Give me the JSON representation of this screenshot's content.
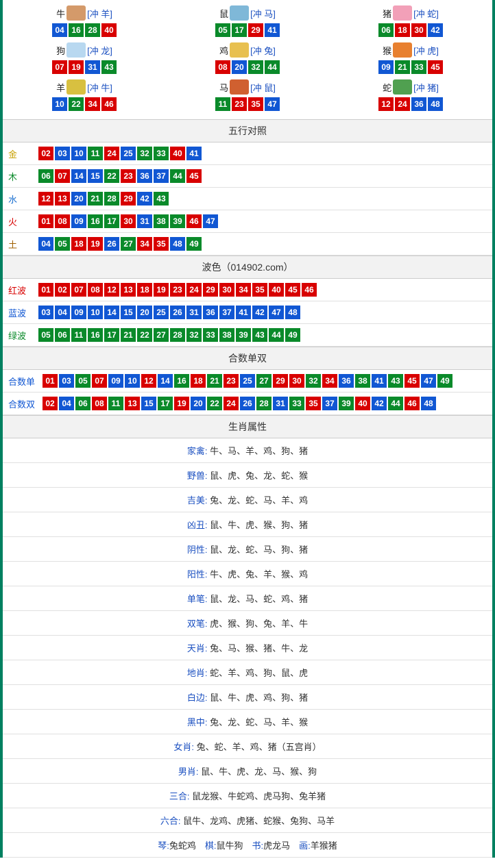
{
  "colors": {
    "red": "#d80000",
    "blue": "#1157d3",
    "green": "#0a8a2a"
  },
  "zodiac_icons": {
    "牛": "#d49a6a",
    "鼠": "#7fb8d8",
    "猪": "#f2a0b8",
    "狗": "#b8d8f0",
    "鸡": "#e8c050",
    "猴": "#e88030",
    "羊": "#d8c040",
    "马": "#d06030",
    "蛇": "#50a050"
  },
  "zodiac": [
    {
      "name": "牛",
      "chong": "[冲 羊]",
      "nums": [
        {
          "n": "04",
          "c": "blue"
        },
        {
          "n": "16",
          "c": "green"
        },
        {
          "n": "28",
          "c": "green"
        },
        {
          "n": "40",
          "c": "red"
        }
      ]
    },
    {
      "name": "鼠",
      "chong": "[冲 马]",
      "nums": [
        {
          "n": "05",
          "c": "green"
        },
        {
          "n": "17",
          "c": "green"
        },
        {
          "n": "29",
          "c": "red"
        },
        {
          "n": "41",
          "c": "blue"
        }
      ]
    },
    {
      "name": "猪",
      "chong": "[冲 蛇]",
      "nums": [
        {
          "n": "06",
          "c": "green"
        },
        {
          "n": "18",
          "c": "red"
        },
        {
          "n": "30",
          "c": "red"
        },
        {
          "n": "42",
          "c": "blue"
        }
      ]
    },
    {
      "name": "狗",
      "chong": "[冲 龙]",
      "nums": [
        {
          "n": "07",
          "c": "red"
        },
        {
          "n": "19",
          "c": "red"
        },
        {
          "n": "31",
          "c": "blue"
        },
        {
          "n": "43",
          "c": "green"
        }
      ]
    },
    {
      "name": "鸡",
      "chong": "[冲 兔]",
      "nums": [
        {
          "n": "08",
          "c": "red"
        },
        {
          "n": "20",
          "c": "blue"
        },
        {
          "n": "32",
          "c": "green"
        },
        {
          "n": "44",
          "c": "green"
        }
      ]
    },
    {
      "name": "猴",
      "chong": "[冲 虎]",
      "nums": [
        {
          "n": "09",
          "c": "blue"
        },
        {
          "n": "21",
          "c": "green"
        },
        {
          "n": "33",
          "c": "green"
        },
        {
          "n": "45",
          "c": "red"
        }
      ]
    },
    {
      "name": "羊",
      "chong": "[冲 牛]",
      "nums": [
        {
          "n": "10",
          "c": "blue"
        },
        {
          "n": "22",
          "c": "green"
        },
        {
          "n": "34",
          "c": "red"
        },
        {
          "n": "46",
          "c": "red"
        }
      ]
    },
    {
      "name": "马",
      "chong": "[冲 鼠]",
      "nums": [
        {
          "n": "11",
          "c": "green"
        },
        {
          "n": "23",
          "c": "red"
        },
        {
          "n": "35",
          "c": "red"
        },
        {
          "n": "47",
          "c": "blue"
        }
      ]
    },
    {
      "name": "蛇",
      "chong": "[冲 猪]",
      "nums": [
        {
          "n": "12",
          "c": "red"
        },
        {
          "n": "24",
          "c": "red"
        },
        {
          "n": "36",
          "c": "blue"
        },
        {
          "n": "48",
          "c": "blue"
        }
      ]
    }
  ],
  "wuxing": {
    "title": "五行对照",
    "rows": [
      {
        "label": "金",
        "label_color": "#c8a000",
        "nums": [
          {
            "n": "02",
            "c": "red"
          },
          {
            "n": "03",
            "c": "blue"
          },
          {
            "n": "10",
            "c": "blue"
          },
          {
            "n": "11",
            "c": "green"
          },
          {
            "n": "24",
            "c": "red"
          },
          {
            "n": "25",
            "c": "blue"
          },
          {
            "n": "32",
            "c": "green"
          },
          {
            "n": "33",
            "c": "green"
          },
          {
            "n": "40",
            "c": "red"
          },
          {
            "n": "41",
            "c": "blue"
          }
        ]
      },
      {
        "label": "木",
        "label_color": "#0a8a2a",
        "nums": [
          {
            "n": "06",
            "c": "green"
          },
          {
            "n": "07",
            "c": "red"
          },
          {
            "n": "14",
            "c": "blue"
          },
          {
            "n": "15",
            "c": "blue"
          },
          {
            "n": "22",
            "c": "green"
          },
          {
            "n": "23",
            "c": "red"
          },
          {
            "n": "36",
            "c": "blue"
          },
          {
            "n": "37",
            "c": "blue"
          },
          {
            "n": "44",
            "c": "green"
          },
          {
            "n": "45",
            "c": "red"
          }
        ]
      },
      {
        "label": "水",
        "label_color": "#1a6fd0",
        "nums": [
          {
            "n": "12",
            "c": "red"
          },
          {
            "n": "13",
            "c": "red"
          },
          {
            "n": "20",
            "c": "blue"
          },
          {
            "n": "21",
            "c": "green"
          },
          {
            "n": "28",
            "c": "green"
          },
          {
            "n": "29",
            "c": "red"
          },
          {
            "n": "42",
            "c": "blue"
          },
          {
            "n": "43",
            "c": "green"
          }
        ]
      },
      {
        "label": "火",
        "label_color": "#d80000",
        "nums": [
          {
            "n": "01",
            "c": "red"
          },
          {
            "n": "08",
            "c": "red"
          },
          {
            "n": "09",
            "c": "blue"
          },
          {
            "n": "16",
            "c": "green"
          },
          {
            "n": "17",
            "c": "green"
          },
          {
            "n": "30",
            "c": "red"
          },
          {
            "n": "31",
            "c": "blue"
          },
          {
            "n": "38",
            "c": "green"
          },
          {
            "n": "39",
            "c": "green"
          },
          {
            "n": "46",
            "c": "red"
          },
          {
            "n": "47",
            "c": "blue"
          }
        ]
      },
      {
        "label": "土",
        "label_color": "#a06000",
        "nums": [
          {
            "n": "04",
            "c": "blue"
          },
          {
            "n": "05",
            "c": "green"
          },
          {
            "n": "18",
            "c": "red"
          },
          {
            "n": "19",
            "c": "red"
          },
          {
            "n": "26",
            "c": "blue"
          },
          {
            "n": "27",
            "c": "green"
          },
          {
            "n": "34",
            "c": "red"
          },
          {
            "n": "35",
            "c": "red"
          },
          {
            "n": "48",
            "c": "blue"
          },
          {
            "n": "49",
            "c": "green"
          }
        ]
      }
    ]
  },
  "bose": {
    "title": "波色（014902.com）",
    "rows": [
      {
        "label": "红波",
        "label_color": "#d80000",
        "nums": [
          {
            "n": "01",
            "c": "red"
          },
          {
            "n": "02",
            "c": "red"
          },
          {
            "n": "07",
            "c": "red"
          },
          {
            "n": "08",
            "c": "red"
          },
          {
            "n": "12",
            "c": "red"
          },
          {
            "n": "13",
            "c": "red"
          },
          {
            "n": "18",
            "c": "red"
          },
          {
            "n": "19",
            "c": "red"
          },
          {
            "n": "23",
            "c": "red"
          },
          {
            "n": "24",
            "c": "red"
          },
          {
            "n": "29",
            "c": "red"
          },
          {
            "n": "30",
            "c": "red"
          },
          {
            "n": "34",
            "c": "red"
          },
          {
            "n": "35",
            "c": "red"
          },
          {
            "n": "40",
            "c": "red"
          },
          {
            "n": "45",
            "c": "red"
          },
          {
            "n": "46",
            "c": "red"
          }
        ]
      },
      {
        "label": "蓝波",
        "label_color": "#1157d3",
        "nums": [
          {
            "n": "03",
            "c": "blue"
          },
          {
            "n": "04",
            "c": "blue"
          },
          {
            "n": "09",
            "c": "blue"
          },
          {
            "n": "10",
            "c": "blue"
          },
          {
            "n": "14",
            "c": "blue"
          },
          {
            "n": "15",
            "c": "blue"
          },
          {
            "n": "20",
            "c": "blue"
          },
          {
            "n": "25",
            "c": "blue"
          },
          {
            "n": "26",
            "c": "blue"
          },
          {
            "n": "31",
            "c": "blue"
          },
          {
            "n": "36",
            "c": "blue"
          },
          {
            "n": "37",
            "c": "blue"
          },
          {
            "n": "41",
            "c": "blue"
          },
          {
            "n": "42",
            "c": "blue"
          },
          {
            "n": "47",
            "c": "blue"
          },
          {
            "n": "48",
            "c": "blue"
          }
        ]
      },
      {
        "label": "绿波",
        "label_color": "#0a8a2a",
        "nums": [
          {
            "n": "05",
            "c": "green"
          },
          {
            "n": "06",
            "c": "green"
          },
          {
            "n": "11",
            "c": "green"
          },
          {
            "n": "16",
            "c": "green"
          },
          {
            "n": "17",
            "c": "green"
          },
          {
            "n": "21",
            "c": "green"
          },
          {
            "n": "22",
            "c": "green"
          },
          {
            "n": "27",
            "c": "green"
          },
          {
            "n": "28",
            "c": "green"
          },
          {
            "n": "32",
            "c": "green"
          },
          {
            "n": "33",
            "c": "green"
          },
          {
            "n": "38",
            "c": "green"
          },
          {
            "n": "39",
            "c": "green"
          },
          {
            "n": "43",
            "c": "green"
          },
          {
            "n": "44",
            "c": "green"
          },
          {
            "n": "49",
            "c": "green"
          }
        ]
      }
    ]
  },
  "heshu": {
    "title": "合数单双",
    "rows": [
      {
        "label": "合数单",
        "label_color": "#1157d3",
        "nums": [
          {
            "n": "01",
            "c": "red"
          },
          {
            "n": "03",
            "c": "blue"
          },
          {
            "n": "05",
            "c": "green"
          },
          {
            "n": "07",
            "c": "red"
          },
          {
            "n": "09",
            "c": "blue"
          },
          {
            "n": "10",
            "c": "blue"
          },
          {
            "n": "12",
            "c": "red"
          },
          {
            "n": "14",
            "c": "blue"
          },
          {
            "n": "16",
            "c": "green"
          },
          {
            "n": "18",
            "c": "red"
          },
          {
            "n": "21",
            "c": "green"
          },
          {
            "n": "23",
            "c": "red"
          },
          {
            "n": "25",
            "c": "blue"
          },
          {
            "n": "27",
            "c": "green"
          },
          {
            "n": "29",
            "c": "red"
          },
          {
            "n": "30",
            "c": "red"
          },
          {
            "n": "32",
            "c": "green"
          },
          {
            "n": "34",
            "c": "red"
          },
          {
            "n": "36",
            "c": "blue"
          },
          {
            "n": "38",
            "c": "green"
          },
          {
            "n": "41",
            "c": "blue"
          },
          {
            "n": "43",
            "c": "green"
          },
          {
            "n": "45",
            "c": "red"
          },
          {
            "n": "47",
            "c": "blue"
          },
          {
            "n": "49",
            "c": "green"
          }
        ]
      },
      {
        "label": "合数双",
        "label_color": "#1157d3",
        "nums": [
          {
            "n": "02",
            "c": "red"
          },
          {
            "n": "04",
            "c": "blue"
          },
          {
            "n": "06",
            "c": "green"
          },
          {
            "n": "08",
            "c": "red"
          },
          {
            "n": "11",
            "c": "green"
          },
          {
            "n": "13",
            "c": "red"
          },
          {
            "n": "15",
            "c": "blue"
          },
          {
            "n": "17",
            "c": "green"
          },
          {
            "n": "19",
            "c": "red"
          },
          {
            "n": "20",
            "c": "blue"
          },
          {
            "n": "22",
            "c": "green"
          },
          {
            "n": "24",
            "c": "red"
          },
          {
            "n": "26",
            "c": "blue"
          },
          {
            "n": "28",
            "c": "green"
          },
          {
            "n": "31",
            "c": "blue"
          },
          {
            "n": "33",
            "c": "green"
          },
          {
            "n": "35",
            "c": "red"
          },
          {
            "n": "37",
            "c": "blue"
          },
          {
            "n": "39",
            "c": "green"
          },
          {
            "n": "40",
            "c": "red"
          },
          {
            "n": "42",
            "c": "blue"
          },
          {
            "n": "44",
            "c": "green"
          },
          {
            "n": "46",
            "c": "red"
          },
          {
            "n": "48",
            "c": "blue"
          }
        ]
      }
    ]
  },
  "shuxing": {
    "title": "生肖属性",
    "rows": [
      {
        "label": "家禽:",
        "val": "牛、马、羊、鸡、狗、猪"
      },
      {
        "label": "野兽:",
        "val": "鼠、虎、兔、龙、蛇、猴"
      },
      {
        "label": "吉美:",
        "val": "兔、龙、蛇、马、羊、鸡"
      },
      {
        "label": "凶丑:",
        "val": "鼠、牛、虎、猴、狗、猪"
      },
      {
        "label": "阴性:",
        "val": "鼠、龙、蛇、马、狗、猪"
      },
      {
        "label": "阳性:",
        "val": "牛、虎、兔、羊、猴、鸡"
      },
      {
        "label": "单笔:",
        "val": "鼠、龙、马、蛇、鸡、猪"
      },
      {
        "label": "双笔:",
        "val": "虎、猴、狗、兔、羊、牛"
      },
      {
        "label": "天肖:",
        "val": "兔、马、猴、猪、牛、龙"
      },
      {
        "label": "地肖:",
        "val": "蛇、羊、鸡、狗、鼠、虎"
      },
      {
        "label": "白边:",
        "val": "鼠、牛、虎、鸡、狗、猪"
      },
      {
        "label": "黑中:",
        "val": "兔、龙、蛇、马、羊、猴"
      },
      {
        "label": "女肖:",
        "val": "兔、蛇、羊、鸡、猪（五宫肖）"
      },
      {
        "label": "男肖:",
        "val": "鼠、牛、虎、龙、马、猴、狗"
      },
      {
        "label": "三合:",
        "val": "鼠龙猴、牛蛇鸡、虎马狗、兔羊猪"
      },
      {
        "label": "六合:",
        "val": "鼠牛、龙鸡、虎猪、蛇猴、兔狗、马羊"
      }
    ],
    "last_row": [
      {
        "label": "琴:",
        "val": "兔蛇鸡"
      },
      {
        "label": "棋:",
        "val": "鼠牛狗"
      },
      {
        "label": "书:",
        "val": "虎龙马"
      },
      {
        "label": "画:",
        "val": "羊猴猪"
      }
    ]
  }
}
